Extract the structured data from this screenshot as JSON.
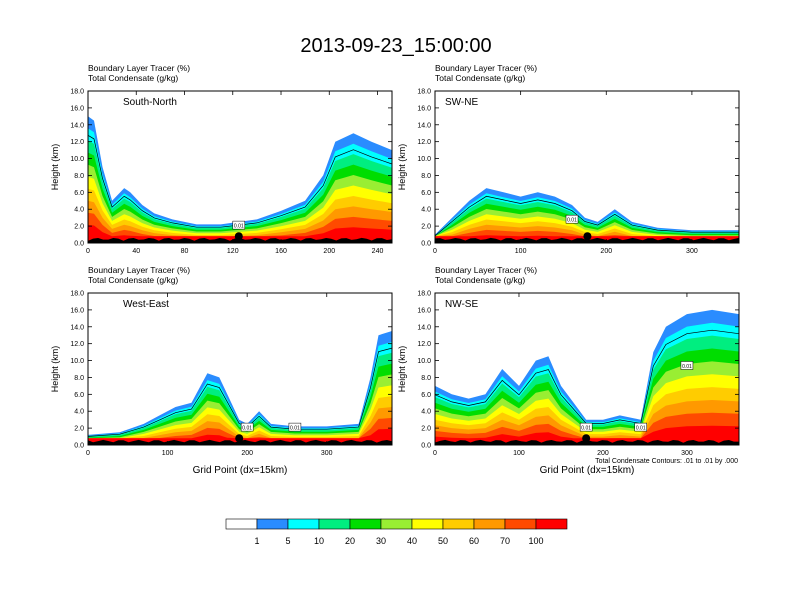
{
  "figure": {
    "title": "2013-09-23_15:00:00",
    "contour_note": "Total Condensate Contours: .01 to .01 by .000",
    "colorbar": {
      "labels": [
        "1",
        "5",
        "10",
        "20",
        "30",
        "40",
        "50",
        "60",
        "70",
        "100"
      ],
      "colors": [
        "#ffffff",
        "#2a8cff",
        "#00ffff",
        "#00ee80",
        "#00dd00",
        "#99ee33",
        "#ffff00",
        "#ffcc00",
        "#ff9900",
        "#ff4a00",
        "#ff0000"
      ]
    }
  },
  "chart_data": [
    {
      "type": "heatmap",
      "variables": [
        "Boundary Layer Tracer   (%)",
        "Total Condensate   (g/kg)"
      ],
      "panel_label": "South-North",
      "ylabel": "Height (km)",
      "xlabel": "",
      "xticks": [
        "0",
        "40",
        "80",
        "120",
        "160",
        "200",
        "240"
      ],
      "xlim": [
        0,
        252
      ],
      "yticks": [
        "0.0",
        "2.0",
        "4.0",
        "6.0",
        "8.0",
        "10.0",
        "12.0",
        "14.0",
        "16.0",
        "18.0"
      ],
      "ylim": [
        0,
        18
      ],
      "point_marker_x": 125,
      "tracer_top_km": [
        [
          0,
          15
        ],
        [
          5,
          14.5
        ],
        [
          12,
          9
        ],
        [
          20,
          5
        ],
        [
          30,
          6.5
        ],
        [
          35,
          6
        ],
        [
          45,
          4.5
        ],
        [
          55,
          3.5
        ],
        [
          70,
          2.8
        ],
        [
          90,
          2.2
        ],
        [
          110,
          2.2
        ],
        [
          125,
          2.5
        ],
        [
          140,
          2.8
        ],
        [
          160,
          3.8
        ],
        [
          180,
          5
        ],
        [
          195,
          8
        ],
        [
          205,
          12
        ],
        [
          220,
          13
        ],
        [
          235,
          12
        ],
        [
          252,
          11
        ]
      ],
      "contour_labels": [
        "0.01"
      ]
    },
    {
      "type": "heatmap",
      "variables": [
        "Boundary Layer Tracer   (%)",
        "Total Condensate   (g/kg)"
      ],
      "panel_label": "SW-NE",
      "ylabel": "Height (km)",
      "xlabel": "",
      "xticks": [
        "0",
        "100",
        "200",
        "300"
      ],
      "xlim": [
        0,
        355
      ],
      "yticks": [
        "0.0",
        "2.0",
        "4.0",
        "6.0",
        "8.0",
        "10.0",
        "12.0",
        "14.0",
        "16.0",
        "18.0"
      ],
      "ylim": [
        0,
        18
      ],
      "point_marker_x": 178,
      "tracer_top_km": [
        [
          0,
          1
        ],
        [
          20,
          3
        ],
        [
          40,
          5
        ],
        [
          60,
          6.5
        ],
        [
          80,
          6
        ],
        [
          100,
          5.5
        ],
        [
          120,
          6
        ],
        [
          140,
          5.5
        ],
        [
          160,
          4.5
        ],
        [
          175,
          3
        ],
        [
          190,
          2.5
        ],
        [
          210,
          4
        ],
        [
          230,
          2.5
        ],
        [
          260,
          1.8
        ],
        [
          300,
          1.5
        ],
        [
          355,
          1.5
        ]
      ],
      "contour_labels": [
        "0.01"
      ]
    },
    {
      "type": "heatmap",
      "variables": [
        "Boundary Layer Tracer   (%)",
        "Total Condensate   (g/kg)"
      ],
      "panel_label": "West-East",
      "ylabel": "Height (km)",
      "xlabel": "Grid Point (dx=15km)",
      "xticks": [
        "0",
        "100",
        "200",
        "300"
      ],
      "xlim": [
        0,
        382
      ],
      "yticks": [
        "0.0",
        "2.0",
        "4.0",
        "6.0",
        "8.0",
        "10.0",
        "12.0",
        "14.0",
        "16.0",
        "18.0"
      ],
      "ylim": [
        0,
        18
      ],
      "point_marker_x": 190,
      "tracer_top_km": [
        [
          0,
          1.2
        ],
        [
          40,
          1.5
        ],
        [
          70,
          2.5
        ],
        [
          90,
          3.5
        ],
        [
          110,
          4.5
        ],
        [
          130,
          5
        ],
        [
          150,
          8.5
        ],
        [
          165,
          8
        ],
        [
          175,
          6
        ],
        [
          190,
          3
        ],
        [
          200,
          2.5
        ],
        [
          215,
          4
        ],
        [
          230,
          2.5
        ],
        [
          260,
          2.2
        ],
        [
          300,
          2.2
        ],
        [
          340,
          2.5
        ],
        [
          355,
          8
        ],
        [
          365,
          13
        ],
        [
          382,
          13.5
        ]
      ],
      "contour_labels": [
        "0.01",
        "0.01"
      ]
    },
    {
      "type": "heatmap",
      "variables": [
        "Boundary Layer Tracer   (%)",
        "Total Condensate   (g/kg)"
      ],
      "panel_label": "NW-SE",
      "ylabel": "Height (km)",
      "xlabel": "Grid Point (dx=15km)",
      "xticks": [
        "0",
        "100",
        "200",
        "300"
      ],
      "xlim": [
        0,
        362
      ],
      "yticks": [
        "0.0",
        "2.0",
        "4.0",
        "6.0",
        "8.0",
        "10.0",
        "12.0",
        "14.0",
        "16.0",
        "18.0"
      ],
      "ylim": [
        0,
        18
      ],
      "point_marker_x": 180,
      "tracer_top_km": [
        [
          0,
          7
        ],
        [
          20,
          6
        ],
        [
          40,
          5.5
        ],
        [
          60,
          6
        ],
        [
          80,
          9
        ],
        [
          100,
          7
        ],
        [
          120,
          10
        ],
        [
          135,
          10.5
        ],
        [
          150,
          7
        ],
        [
          165,
          5
        ],
        [
          180,
          3
        ],
        [
          200,
          3
        ],
        [
          220,
          3.5
        ],
        [
          245,
          3
        ],
        [
          260,
          11
        ],
        [
          275,
          14
        ],
        [
          300,
          15.5
        ],
        [
          330,
          16
        ],
        [
          362,
          15.5
        ]
      ],
      "contour_labels": [
        "0.01",
        "0.01",
        "0.01"
      ]
    }
  ]
}
